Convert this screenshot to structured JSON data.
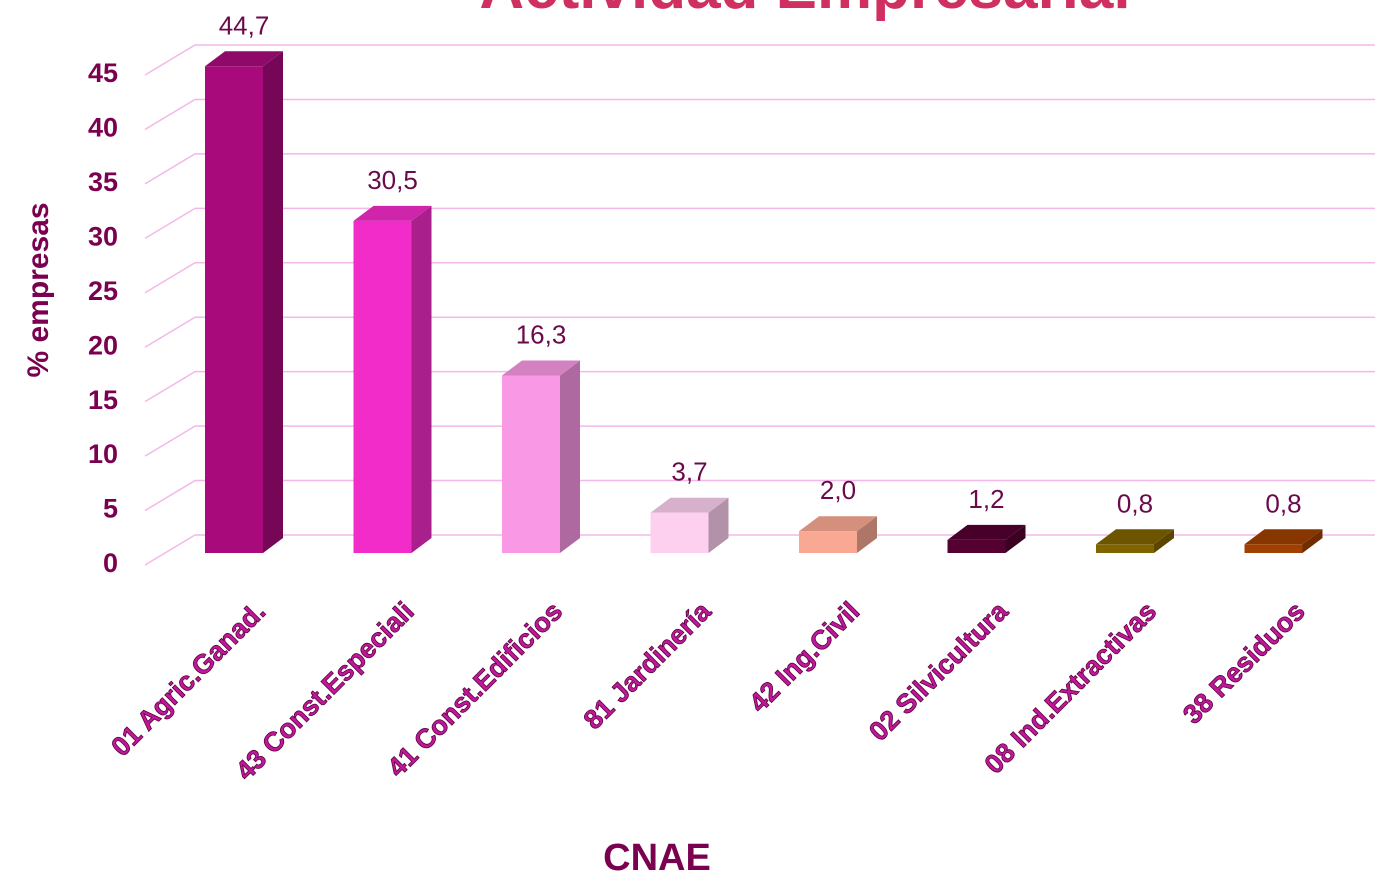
{
  "chart_data": {
    "type": "bar3d",
    "title": "Actividad Empresarial",
    "categories": [
      "01 Agric.Ganad.",
      "43 Const.Especiali",
      "41 Const.Edificios",
      "81 Jardinería",
      "42 Ing.Civil",
      "02 Silvicultura",
      "08 Ind.Extractivas",
      "38 Residuos"
    ],
    "values": [
      44.7,
      30.5,
      16.3,
      3.7,
      2.0,
      1.2,
      0.8,
      0.8
    ],
    "value_labels": [
      "44,7",
      "30,5",
      "16,3",
      "3,7",
      "2,0",
      "1,2",
      "0,8",
      "0,8"
    ],
    "colors": [
      "#a80a7c",
      "#f22cc8",
      "#f998e4",
      "#fdd0f0",
      "#f9a993",
      "#540030",
      "#806400",
      "#a04000"
    ],
    "ylim": [
      0,
      45
    ],
    "yticks": [
      0,
      5,
      10,
      15,
      20,
      25,
      30,
      35,
      40,
      45
    ],
    "y_label": "% empresas",
    "x_label": "CNAE",
    "grid": true
  }
}
